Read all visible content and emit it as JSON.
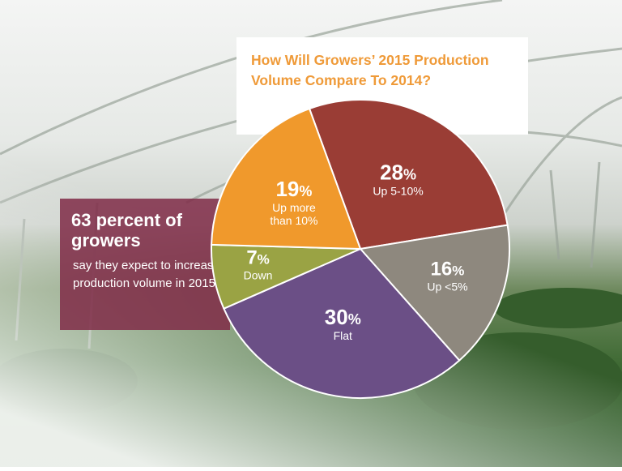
{
  "chart_data": {
    "type": "pie",
    "title": "How Will Growers’ 2015 Production Volume Compare To 2014?",
    "slices": [
      {
        "label": "Up 5-10%",
        "value": 28,
        "display": "28",
        "color": "#9a3d35"
      },
      {
        "label": "Up <5%",
        "value": 16,
        "display": "16",
        "color": "#8e887e"
      },
      {
        "label": "Flat",
        "value": 30,
        "display": "30",
        "color": "#6b4f86"
      },
      {
        "label": "Down",
        "value": 7,
        "display": "7",
        "color": "#9aa344"
      },
      {
        "label": "Up more than 10%",
        "label_lines": [
          "Up more",
          "than 10%"
        ],
        "value": 19,
        "display": "19",
        "color": "#f0992c"
      }
    ],
    "percent_sign": "%"
  },
  "callout": {
    "headline": "63 percent of growers",
    "body": "say they expect to increase production volume in 2015."
  }
}
